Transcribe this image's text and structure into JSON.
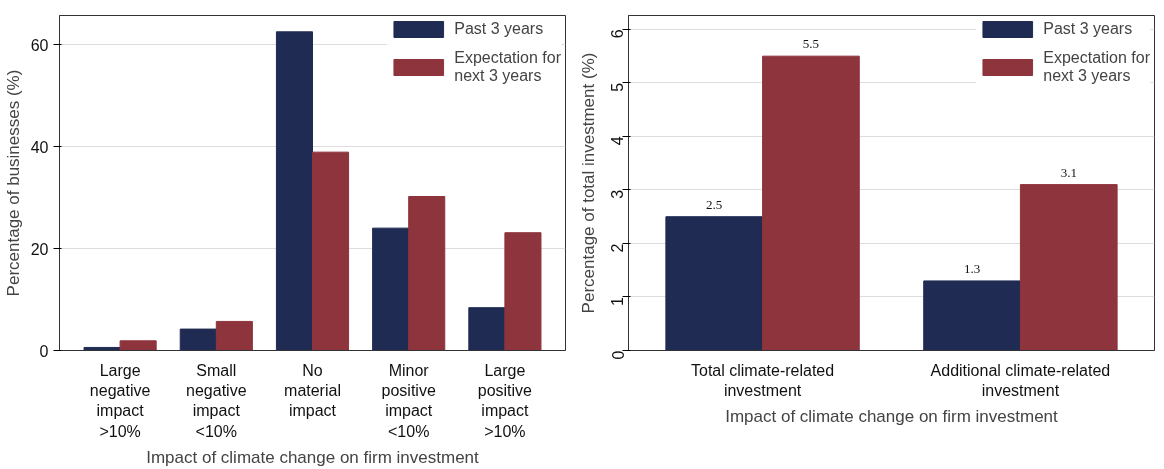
{
  "chart_data": [
    {
      "type": "bar",
      "xlabel": "Impact of climate change on firm investment",
      "ylabel": "Percentage of businesses (%)",
      "categories": [
        "Large\nnegative\nimpact\n>10%",
        "Small\nnegative\nimpact\n<10%",
        "No\nmaterial\nimpact",
        "Minor\npositive\nimpact\n<10%",
        "Large\npositive\nimpact\n>10%"
      ],
      "series": [
        {
          "name": "Past 3 years",
          "color": "#1f2b52",
          "values": [
            0.6,
            4.2,
            62.5,
            24.0,
            8.4
          ]
        },
        {
          "name": "Expectation for\nnext 3 years",
          "color": "#8e343c",
          "values": [
            1.9,
            5.7,
            38.9,
            30.2,
            23.1
          ]
        }
      ],
      "ylim": [
        0,
        65.7
      ],
      "yticks": [
        0,
        20,
        40,
        60
      ],
      "grid": "y",
      "legend": "top right"
    },
    {
      "type": "bar",
      "xlabel": "Impact of climate change on firm investment",
      "ylabel": "Percentage of total investment (%)",
      "categories": [
        "Total climate-related\ninvestment",
        "Additional climate-related\ninvestment"
      ],
      "series": [
        {
          "name": "Past 3 years",
          "color": "#1f2b52",
          "values": [
            2.5,
            1.3
          ]
        },
        {
          "name": "Expectation for\nnext 3 years",
          "color": "#8e343c",
          "values": [
            5.5,
            3.1
          ]
        }
      ],
      "ylim": [
        0,
        6.26
      ],
      "yticks": [
        0,
        1,
        2,
        3,
        4,
        5,
        6
      ],
      "grid": "y",
      "legend": "top right",
      "data_labels": true
    }
  ]
}
